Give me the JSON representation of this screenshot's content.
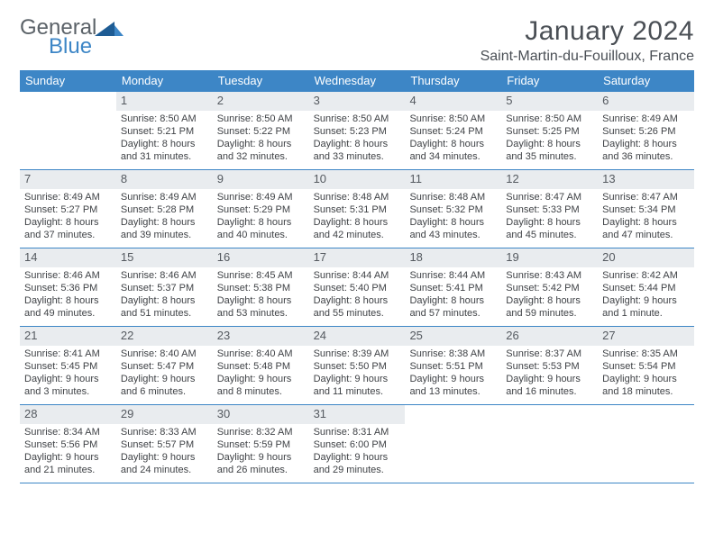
{
  "logo": {
    "text1": "General",
    "text2": "Blue"
  },
  "title": "January 2024",
  "location": "Saint-Martin-du-Fouilloux, France",
  "colors": {
    "header_bar": "#3d86c6",
    "header_text": "#ffffff",
    "daynum_bg": "#e9ecef",
    "body_text": "#3f4246",
    "title_text": "#4a4f55",
    "week_divider": "#3d86c6",
    "page_bg": "#ffffff"
  },
  "typography": {
    "title_fontsize": 30,
    "location_fontsize": 16,
    "dayhead_fontsize": 13,
    "daynum_fontsize": 13,
    "cell_fontsize": 11,
    "font_family": "Arial"
  },
  "day_labels": [
    "Sunday",
    "Monday",
    "Tuesday",
    "Wednesday",
    "Thursday",
    "Friday",
    "Saturday"
  ],
  "weeks": [
    [
      null,
      {
        "n": "1",
        "sr": "Sunrise: 8:50 AM",
        "ss": "Sunset: 5:21 PM",
        "dl1": "Daylight: 8 hours",
        "dl2": "and 31 minutes."
      },
      {
        "n": "2",
        "sr": "Sunrise: 8:50 AM",
        "ss": "Sunset: 5:22 PM",
        "dl1": "Daylight: 8 hours",
        "dl2": "and 32 minutes."
      },
      {
        "n": "3",
        "sr": "Sunrise: 8:50 AM",
        "ss": "Sunset: 5:23 PM",
        "dl1": "Daylight: 8 hours",
        "dl2": "and 33 minutes."
      },
      {
        "n": "4",
        "sr": "Sunrise: 8:50 AM",
        "ss": "Sunset: 5:24 PM",
        "dl1": "Daylight: 8 hours",
        "dl2": "and 34 minutes."
      },
      {
        "n": "5",
        "sr": "Sunrise: 8:50 AM",
        "ss": "Sunset: 5:25 PM",
        "dl1": "Daylight: 8 hours",
        "dl2": "and 35 minutes."
      },
      {
        "n": "6",
        "sr": "Sunrise: 8:49 AM",
        "ss": "Sunset: 5:26 PM",
        "dl1": "Daylight: 8 hours",
        "dl2": "and 36 minutes."
      }
    ],
    [
      {
        "n": "7",
        "sr": "Sunrise: 8:49 AM",
        "ss": "Sunset: 5:27 PM",
        "dl1": "Daylight: 8 hours",
        "dl2": "and 37 minutes."
      },
      {
        "n": "8",
        "sr": "Sunrise: 8:49 AM",
        "ss": "Sunset: 5:28 PM",
        "dl1": "Daylight: 8 hours",
        "dl2": "and 39 minutes."
      },
      {
        "n": "9",
        "sr": "Sunrise: 8:49 AM",
        "ss": "Sunset: 5:29 PM",
        "dl1": "Daylight: 8 hours",
        "dl2": "and 40 minutes."
      },
      {
        "n": "10",
        "sr": "Sunrise: 8:48 AM",
        "ss": "Sunset: 5:31 PM",
        "dl1": "Daylight: 8 hours",
        "dl2": "and 42 minutes."
      },
      {
        "n": "11",
        "sr": "Sunrise: 8:48 AM",
        "ss": "Sunset: 5:32 PM",
        "dl1": "Daylight: 8 hours",
        "dl2": "and 43 minutes."
      },
      {
        "n": "12",
        "sr": "Sunrise: 8:47 AM",
        "ss": "Sunset: 5:33 PM",
        "dl1": "Daylight: 8 hours",
        "dl2": "and 45 minutes."
      },
      {
        "n": "13",
        "sr": "Sunrise: 8:47 AM",
        "ss": "Sunset: 5:34 PM",
        "dl1": "Daylight: 8 hours",
        "dl2": "and 47 minutes."
      }
    ],
    [
      {
        "n": "14",
        "sr": "Sunrise: 8:46 AM",
        "ss": "Sunset: 5:36 PM",
        "dl1": "Daylight: 8 hours",
        "dl2": "and 49 minutes."
      },
      {
        "n": "15",
        "sr": "Sunrise: 8:46 AM",
        "ss": "Sunset: 5:37 PM",
        "dl1": "Daylight: 8 hours",
        "dl2": "and 51 minutes."
      },
      {
        "n": "16",
        "sr": "Sunrise: 8:45 AM",
        "ss": "Sunset: 5:38 PM",
        "dl1": "Daylight: 8 hours",
        "dl2": "and 53 minutes."
      },
      {
        "n": "17",
        "sr": "Sunrise: 8:44 AM",
        "ss": "Sunset: 5:40 PM",
        "dl1": "Daylight: 8 hours",
        "dl2": "and 55 minutes."
      },
      {
        "n": "18",
        "sr": "Sunrise: 8:44 AM",
        "ss": "Sunset: 5:41 PM",
        "dl1": "Daylight: 8 hours",
        "dl2": "and 57 minutes."
      },
      {
        "n": "19",
        "sr": "Sunrise: 8:43 AM",
        "ss": "Sunset: 5:42 PM",
        "dl1": "Daylight: 8 hours",
        "dl2": "and 59 minutes."
      },
      {
        "n": "20",
        "sr": "Sunrise: 8:42 AM",
        "ss": "Sunset: 5:44 PM",
        "dl1": "Daylight: 9 hours",
        "dl2": "and 1 minute."
      }
    ],
    [
      {
        "n": "21",
        "sr": "Sunrise: 8:41 AM",
        "ss": "Sunset: 5:45 PM",
        "dl1": "Daylight: 9 hours",
        "dl2": "and 3 minutes."
      },
      {
        "n": "22",
        "sr": "Sunrise: 8:40 AM",
        "ss": "Sunset: 5:47 PM",
        "dl1": "Daylight: 9 hours",
        "dl2": "and 6 minutes."
      },
      {
        "n": "23",
        "sr": "Sunrise: 8:40 AM",
        "ss": "Sunset: 5:48 PM",
        "dl1": "Daylight: 9 hours",
        "dl2": "and 8 minutes."
      },
      {
        "n": "24",
        "sr": "Sunrise: 8:39 AM",
        "ss": "Sunset: 5:50 PM",
        "dl1": "Daylight: 9 hours",
        "dl2": "and 11 minutes."
      },
      {
        "n": "25",
        "sr": "Sunrise: 8:38 AM",
        "ss": "Sunset: 5:51 PM",
        "dl1": "Daylight: 9 hours",
        "dl2": "and 13 minutes."
      },
      {
        "n": "26",
        "sr": "Sunrise: 8:37 AM",
        "ss": "Sunset: 5:53 PM",
        "dl1": "Daylight: 9 hours",
        "dl2": "and 16 minutes."
      },
      {
        "n": "27",
        "sr": "Sunrise: 8:35 AM",
        "ss": "Sunset: 5:54 PM",
        "dl1": "Daylight: 9 hours",
        "dl2": "and 18 minutes."
      }
    ],
    [
      {
        "n": "28",
        "sr": "Sunrise: 8:34 AM",
        "ss": "Sunset: 5:56 PM",
        "dl1": "Daylight: 9 hours",
        "dl2": "and 21 minutes."
      },
      {
        "n": "29",
        "sr": "Sunrise: 8:33 AM",
        "ss": "Sunset: 5:57 PM",
        "dl1": "Daylight: 9 hours",
        "dl2": "and 24 minutes."
      },
      {
        "n": "30",
        "sr": "Sunrise: 8:32 AM",
        "ss": "Sunset: 5:59 PM",
        "dl1": "Daylight: 9 hours",
        "dl2": "and 26 minutes."
      },
      {
        "n": "31",
        "sr": "Sunrise: 8:31 AM",
        "ss": "Sunset: 6:00 PM",
        "dl1": "Daylight: 9 hours",
        "dl2": "and 29 minutes."
      },
      null,
      null,
      null
    ]
  ]
}
